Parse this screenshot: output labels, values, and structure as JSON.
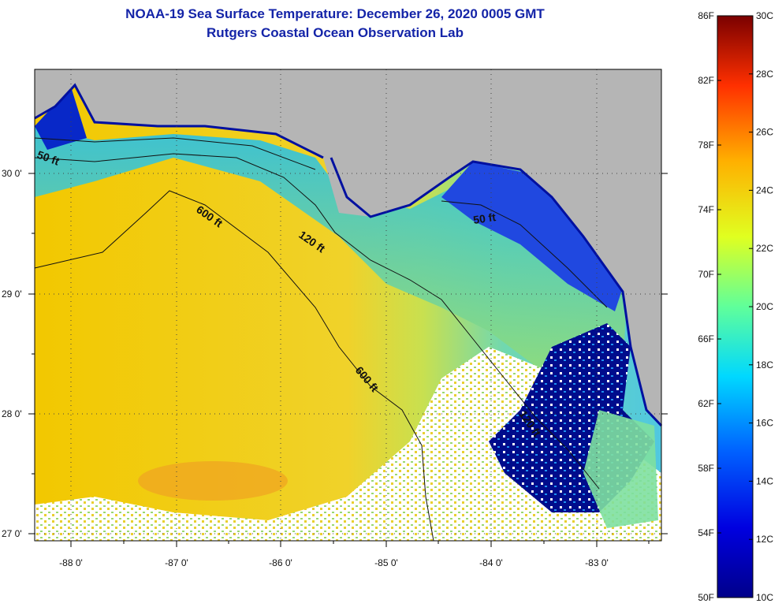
{
  "title_line1": "NOAA-19 Sea Surface Temperature:  December 26, 2020 0005 GMT",
  "title_line2": "Rutgers Coastal Ocean Observation Lab",
  "lon_ticks": [
    "-88 0'",
    "-87 0'",
    "-86 0'",
    "-85 0'",
    "-84 0'",
    "-83 0'"
  ],
  "lat_ticks": [
    "30 0'",
    "29 0'",
    "28 0'",
    "27 0'"
  ],
  "contours": [
    {
      "label": "50 ft"
    },
    {
      "label": "50 ft"
    },
    {
      "label": "120 ft"
    },
    {
      "label": "120 ft"
    },
    {
      "label": "600 ft"
    },
    {
      "label": "600 ft"
    }
  ],
  "colorbar": {
    "fahrenheit": [
      "86F",
      "82F",
      "78F",
      "74F",
      "70F",
      "66F",
      "62F",
      "58F",
      "54F",
      "50F"
    ],
    "celsius": [
      "30C",
      "28C",
      "26C",
      "24C",
      "22C",
      "20C",
      "18C",
      "16C",
      "14C",
      "12C",
      "10C"
    ]
  },
  "colors": {
    "title": "#1424a8",
    "land": "#b5b5b5",
    "warm_sst": "#f5c400",
    "mid_sst": "#a8e060",
    "cool_sst": "#30d0e8",
    "cold_sst": "#1040d8",
    "very_cold_sst": "#000a8c"
  }
}
